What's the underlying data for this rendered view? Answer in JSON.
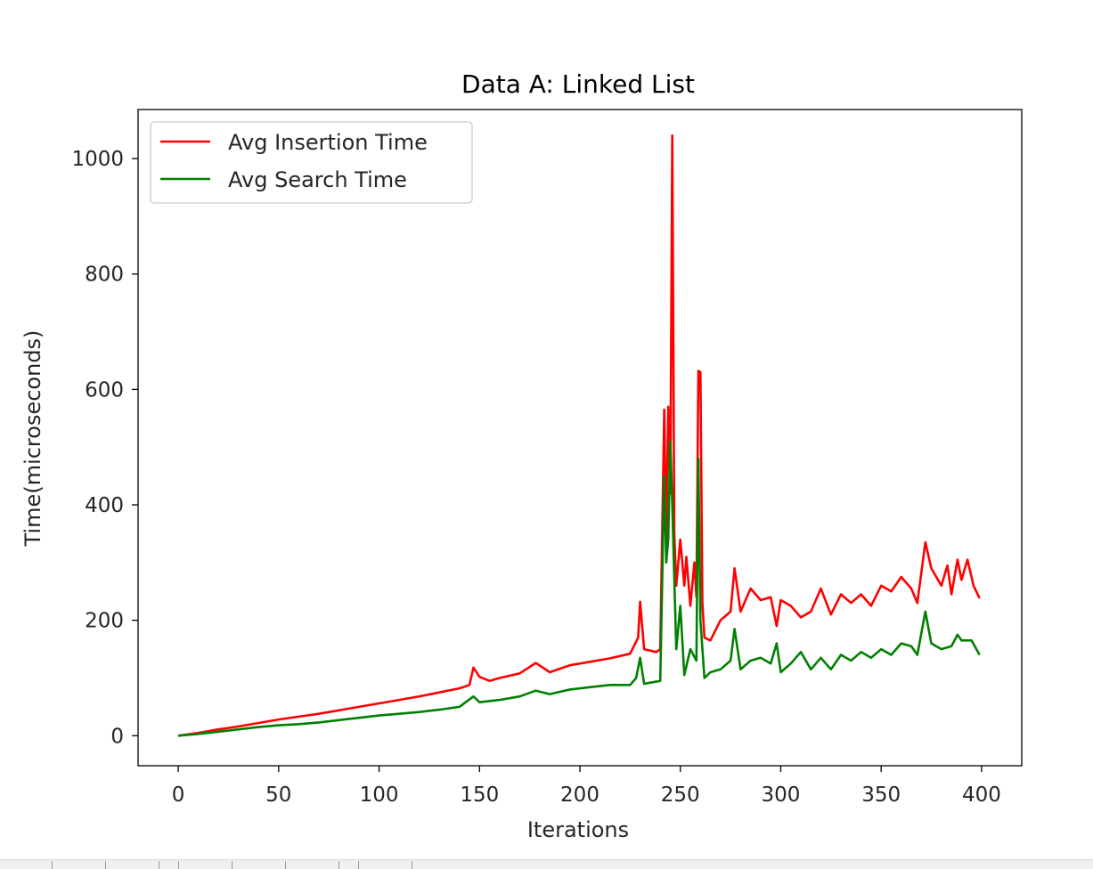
{
  "chart_data": {
    "type": "line",
    "title": "Data A: Linked List",
    "xlabel": "Iterations",
    "ylabel": "Time(microseconds)",
    "xlim": [
      -20,
      420
    ],
    "ylim": [
      -52,
      1085
    ],
    "xticks": [
      0,
      50,
      100,
      150,
      200,
      250,
      300,
      350,
      400
    ],
    "yticks": [
      0,
      200,
      400,
      600,
      800,
      1000
    ],
    "grid": false,
    "legend": "top-left",
    "series": [
      {
        "name": "Avg Insertion Time",
        "color": "#ff0000",
        "points": [
          [
            0,
            0
          ],
          [
            10,
            5
          ],
          [
            20,
            11
          ],
          [
            30,
            16
          ],
          [
            40,
            22
          ],
          [
            50,
            28
          ],
          [
            60,
            33
          ],
          [
            70,
            38
          ],
          [
            80,
            44
          ],
          [
            90,
            50
          ],
          [
            100,
            56
          ],
          [
            110,
            62
          ],
          [
            120,
            68
          ],
          [
            130,
            75
          ],
          [
            140,
            82
          ],
          [
            145,
            88
          ],
          [
            147,
            118
          ],
          [
            150,
            102
          ],
          [
            155,
            95
          ],
          [
            160,
            100
          ],
          [
            170,
            108
          ],
          [
            178,
            126
          ],
          [
            185,
            110
          ],
          [
            195,
            122
          ],
          [
            205,
            128
          ],
          [
            215,
            134
          ],
          [
            225,
            142
          ],
          [
            229,
            170
          ],
          [
            230,
            232
          ],
          [
            232,
            150
          ],
          [
            238,
            145
          ],
          [
            240,
            150
          ],
          [
            242,
            565
          ],
          [
            243,
            330
          ],
          [
            244,
            570
          ],
          [
            245,
            420
          ],
          [
            246,
            1040
          ],
          [
            247,
            350
          ],
          [
            248,
            260
          ],
          [
            250,
            340
          ],
          [
            252,
            260
          ],
          [
            253,
            310
          ],
          [
            255,
            225
          ],
          [
            257,
            300
          ],
          [
            258,
            240
          ],
          [
            259,
            632
          ],
          [
            260,
            630
          ],
          [
            261,
            230
          ],
          [
            262,
            170
          ],
          [
            265,
            165
          ],
          [
            270,
            200
          ],
          [
            275,
            215
          ],
          [
            277,
            290
          ],
          [
            280,
            215
          ],
          [
            285,
            255
          ],
          [
            290,
            235
          ],
          [
            295,
            240
          ],
          [
            298,
            190
          ],
          [
            300,
            235
          ],
          [
            305,
            225
          ],
          [
            310,
            205
          ],
          [
            315,
            215
          ],
          [
            320,
            255
          ],
          [
            325,
            210
          ],
          [
            330,
            245
          ],
          [
            335,
            230
          ],
          [
            340,
            245
          ],
          [
            345,
            225
          ],
          [
            350,
            260
          ],
          [
            355,
            250
          ],
          [
            360,
            275
          ],
          [
            365,
            255
          ],
          [
            368,
            230
          ],
          [
            372,
            335
          ],
          [
            375,
            290
          ],
          [
            380,
            260
          ],
          [
            383,
            295
          ],
          [
            385,
            245
          ],
          [
            388,
            305
          ],
          [
            390,
            270
          ],
          [
            393,
            305
          ],
          [
            396,
            260
          ],
          [
            399,
            238
          ]
        ]
      },
      {
        "name": "Avg Search Time",
        "color": "#008000",
        "points": [
          [
            0,
            0
          ],
          [
            10,
            3
          ],
          [
            20,
            7
          ],
          [
            30,
            11
          ],
          [
            40,
            15
          ],
          [
            50,
            18
          ],
          [
            60,
            20
          ],
          [
            70,
            23
          ],
          [
            80,
            27
          ],
          [
            90,
            31
          ],
          [
            100,
            35
          ],
          [
            110,
            38
          ],
          [
            120,
            41
          ],
          [
            130,
            45
          ],
          [
            140,
            50
          ],
          [
            147,
            68
          ],
          [
            150,
            58
          ],
          [
            160,
            62
          ],
          [
            170,
            68
          ],
          [
            178,
            78
          ],
          [
            185,
            72
          ],
          [
            195,
            80
          ],
          [
            205,
            84
          ],
          [
            215,
            88
          ],
          [
            225,
            88
          ],
          [
            228,
            100
          ],
          [
            230,
            135
          ],
          [
            232,
            90
          ],
          [
            240,
            95
          ],
          [
            242,
            450
          ],
          [
            243,
            300
          ],
          [
            244,
            340
          ],
          [
            245,
            510
          ],
          [
            246,
            400
          ],
          [
            247,
            270
          ],
          [
            248,
            150
          ],
          [
            250,
            225
          ],
          [
            252,
            105
          ],
          [
            255,
            150
          ],
          [
            258,
            130
          ],
          [
            259,
            480
          ],
          [
            260,
            200
          ],
          [
            262,
            100
          ],
          [
            265,
            110
          ],
          [
            270,
            115
          ],
          [
            275,
            130
          ],
          [
            277,
            185
          ],
          [
            280,
            115
          ],
          [
            285,
            130
          ],
          [
            290,
            135
          ],
          [
            295,
            125
          ],
          [
            298,
            160
          ],
          [
            300,
            110
          ],
          [
            305,
            125
          ],
          [
            310,
            145
          ],
          [
            315,
            115
          ],
          [
            320,
            135
          ],
          [
            325,
            115
          ],
          [
            330,
            140
          ],
          [
            335,
            130
          ],
          [
            340,
            145
          ],
          [
            345,
            135
          ],
          [
            350,
            150
          ],
          [
            355,
            140
          ],
          [
            360,
            160
          ],
          [
            365,
            155
          ],
          [
            368,
            140
          ],
          [
            372,
            215
          ],
          [
            375,
            160
          ],
          [
            380,
            150
          ],
          [
            385,
            155
          ],
          [
            388,
            175
          ],
          [
            390,
            165
          ],
          [
            395,
            165
          ],
          [
            399,
            140
          ]
        ]
      }
    ]
  }
}
